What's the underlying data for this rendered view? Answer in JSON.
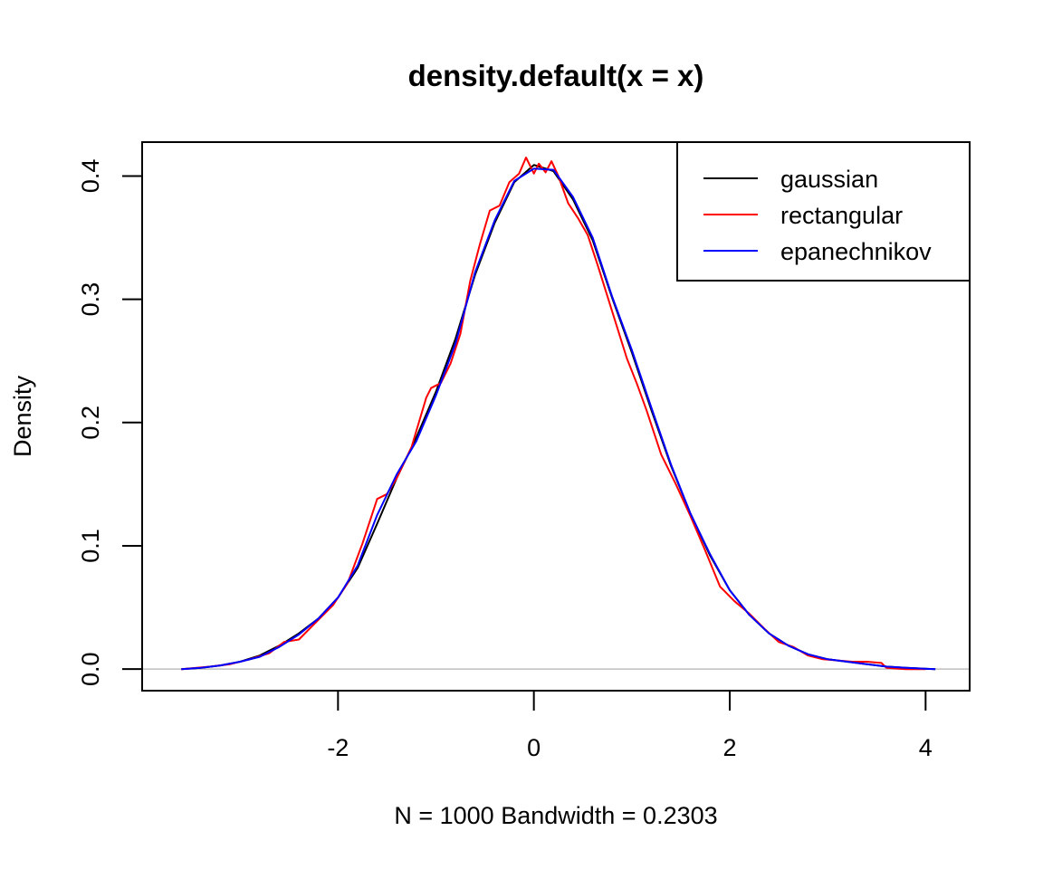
{
  "chart_data": {
    "type": "line",
    "title": "density.default(x = x)",
    "xlabel": "N = 1000   Bandwidth = 0.2303",
    "ylabel": "Density",
    "xlim": [
      -4.0,
      4.45
    ],
    "ylim": [
      -0.0175,
      0.4275
    ],
    "x_ticks": [
      -2,
      0,
      2,
      4
    ],
    "x_tick_labels": [
      "-2",
      "0",
      "2",
      "4"
    ],
    "y_ticks": [
      0.0,
      0.1,
      0.2,
      0.3,
      0.4
    ],
    "y_tick_labels": [
      "0.0",
      "0.1",
      "0.2",
      "0.3",
      "0.4"
    ],
    "grid": false,
    "baseline": 0,
    "baseline_color": "#bebebe",
    "legend": {
      "position": "top-right",
      "entries": [
        "gaussian",
        "rectangular",
        "epanechnikov"
      ]
    },
    "series": [
      {
        "name": "gaussian",
        "color": "#000000",
        "x": [
          -3.6,
          -3.4,
          -3.2,
          -3.0,
          -2.8,
          -2.6,
          -2.4,
          -2.2,
          -2.0,
          -1.8,
          -1.6,
          -1.4,
          -1.2,
          -1.0,
          -0.8,
          -0.6,
          -0.4,
          -0.2,
          0.0,
          0.2,
          0.4,
          0.6,
          0.8,
          1.0,
          1.2,
          1.4,
          1.6,
          1.8,
          2.0,
          2.2,
          2.4,
          2.6,
          2.8,
          3.0,
          3.2,
          3.4,
          3.6,
          3.8,
          4.1
        ],
        "y": [
          0.0,
          0.001,
          0.003,
          0.006,
          0.011,
          0.019,
          0.029,
          0.041,
          0.058,
          0.082,
          0.118,
          0.155,
          0.188,
          0.225,
          0.268,
          0.32,
          0.362,
          0.395,
          0.409,
          0.404,
          0.381,
          0.348,
          0.301,
          0.257,
          0.21,
          0.165,
          0.126,
          0.092,
          0.064,
          0.044,
          0.029,
          0.019,
          0.012,
          0.008,
          0.006,
          0.004,
          0.002,
          0.001,
          0.0
        ]
      },
      {
        "name": "rectangular",
        "color": "#ff0000",
        "x": [
          -3.6,
          -3.3,
          -3.1,
          -2.9,
          -2.7,
          -2.55,
          -2.4,
          -2.2,
          -2.05,
          -1.9,
          -1.75,
          -1.6,
          -1.5,
          -1.4,
          -1.25,
          -1.1,
          -1.05,
          -0.95,
          -0.85,
          -0.75,
          -0.65,
          -0.55,
          -0.45,
          -0.35,
          -0.25,
          -0.15,
          -0.08,
          0.0,
          0.05,
          0.12,
          0.18,
          0.25,
          0.35,
          0.45,
          0.55,
          0.65,
          0.8,
          0.95,
          1.05,
          1.15,
          1.3,
          1.45,
          1.6,
          1.75,
          1.9,
          2.05,
          2.2,
          2.35,
          2.5,
          2.65,
          2.8,
          2.95,
          3.1,
          3.25,
          3.4,
          3.55,
          3.6,
          3.8,
          4.0
        ],
        "y": [
          0.0,
          0.002,
          0.004,
          0.008,
          0.013,
          0.022,
          0.024,
          0.04,
          0.052,
          0.07,
          0.102,
          0.138,
          0.142,
          0.155,
          0.18,
          0.22,
          0.228,
          0.232,
          0.248,
          0.272,
          0.315,
          0.345,
          0.372,
          0.376,
          0.395,
          0.402,
          0.415,
          0.402,
          0.41,
          0.403,
          0.412,
          0.4,
          0.378,
          0.366,
          0.352,
          0.328,
          0.29,
          0.252,
          0.232,
          0.21,
          0.174,
          0.15,
          0.124,
          0.096,
          0.067,
          0.055,
          0.045,
          0.033,
          0.022,
          0.018,
          0.011,
          0.008,
          0.007,
          0.006,
          0.006,
          0.005,
          0.001,
          0.0,
          0.0
        ]
      },
      {
        "name": "epanechnikov",
        "color": "#0000ff",
        "x": [
          -3.6,
          -3.4,
          -3.2,
          -3.0,
          -2.8,
          -2.6,
          -2.4,
          -2.2,
          -2.0,
          -1.8,
          -1.6,
          -1.4,
          -1.2,
          -1.0,
          -0.8,
          -0.6,
          -0.4,
          -0.2,
          0.0,
          0.2,
          0.4,
          0.6,
          0.8,
          1.0,
          1.2,
          1.4,
          1.6,
          1.8,
          2.0,
          2.2,
          2.4,
          2.6,
          2.8,
          3.0,
          3.2,
          3.4,
          3.6,
          3.8,
          4.1
        ],
        "y": [
          0.0,
          0.001,
          0.003,
          0.006,
          0.01,
          0.018,
          0.028,
          0.041,
          0.058,
          0.084,
          0.125,
          0.158,
          0.185,
          0.222,
          0.264,
          0.322,
          0.364,
          0.396,
          0.406,
          0.405,
          0.383,
          0.35,
          0.302,
          0.259,
          0.212,
          0.166,
          0.126,
          0.093,
          0.064,
          0.044,
          0.029,
          0.019,
          0.012,
          0.008,
          0.006,
          0.004,
          0.002,
          0.001,
          0.0
        ]
      }
    ]
  }
}
